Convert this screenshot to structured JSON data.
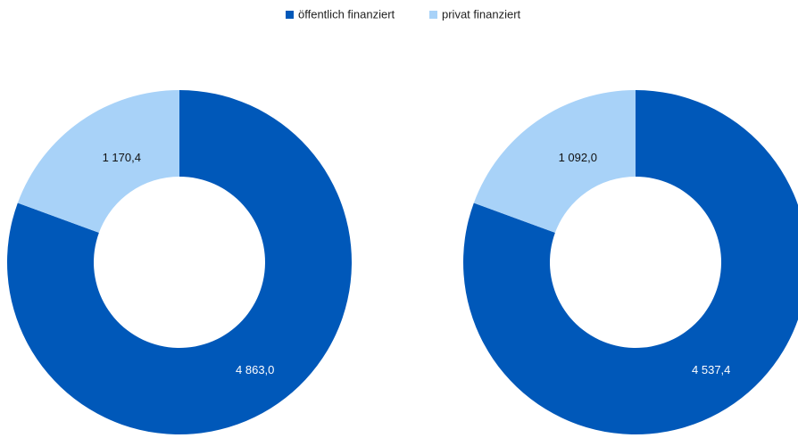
{
  "legend": {
    "labels": [
      "öffentlich finanziert",
      "privat finanziert"
    ],
    "colors": [
      "#0058b9",
      "#a8d2f8"
    ]
  },
  "chart_data": [
    {
      "type": "donut",
      "values": [
        4863.0,
        1170.4
      ],
      "value_labels": [
        "4 863,0",
        "1 170,4"
      ]
    },
    {
      "type": "donut",
      "values": [
        4537.4,
        1092.0
      ],
      "value_labels": [
        "4 537,4",
        "1 092,0"
      ]
    }
  ]
}
